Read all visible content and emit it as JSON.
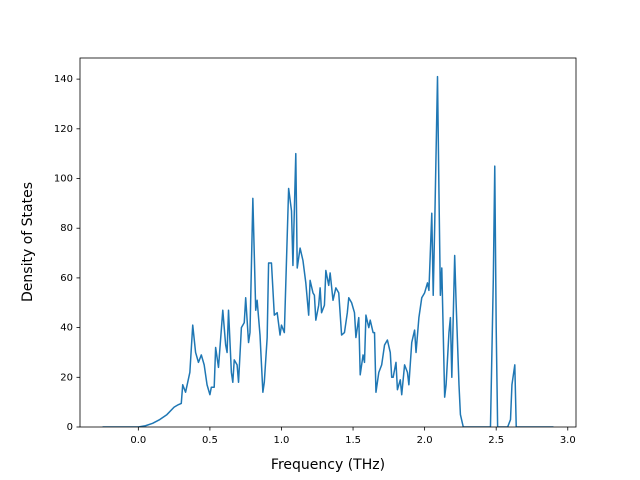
{
  "chart_data": {
    "type": "line",
    "xlabel": "Frequency (THz)",
    "ylabel": "Density of States",
    "xlim": [
      -0.4075,
      3.0575
    ],
    "ylim": [
      0,
      148.5
    ],
    "xticks": [
      {
        "value": 0,
        "label": "0.0"
      },
      {
        "value": 0.5,
        "label": "0.5"
      },
      {
        "value": 1,
        "label": "1.0"
      },
      {
        "value": 1.5,
        "label": "1.5"
      },
      {
        "value": 2,
        "label": "2.0"
      },
      {
        "value": 2.5,
        "label": "2.5"
      },
      {
        "value": 3,
        "label": "3.0"
      }
    ],
    "yticks": [
      0,
      20,
      40,
      60,
      80,
      100,
      120,
      140
    ],
    "grid": false,
    "series": [
      {
        "color": "#1f77b4",
        "x": [
          -0.25,
          0,
          0.05,
          0.1,
          0.15,
          0.2,
          0.25,
          0.28,
          0.3,
          0.31,
          0.33,
          0.36,
          0.38,
          0.4,
          0.42,
          0.44,
          0.46,
          0.48,
          0.5,
          0.51,
          0.53,
          0.54,
          0.56,
          0.59,
          0.61,
          0.62,
          0.63,
          0.65,
          0.66,
          0.67,
          0.69,
          0.7,
          0.72,
          0.74,
          0.75,
          0.77,
          0.78,
          0.8,
          0.82,
          0.83,
          0.85,
          0.87,
          0.88,
          0.9,
          0.91,
          0.93,
          0.95,
          0.97,
          0.99,
          1,
          1.02,
          1.05,
          1.07,
          1.08,
          1.1,
          1.11,
          1.13,
          1.15,
          1.17,
          1.19,
          1.2,
          1.22,
          1.23,
          1.24,
          1.26,
          1.27,
          1.28,
          1.3,
          1.31,
          1.33,
          1.34,
          1.36,
          1.38,
          1.4,
          1.42,
          1.44,
          1.46,
          1.47,
          1.49,
          1.51,
          1.52,
          1.54,
          1.55,
          1.57,
          1.58,
          1.59,
          1.61,
          1.62,
          1.64,
          1.65,
          1.66,
          1.68,
          1.7,
          1.72,
          1.74,
          1.76,
          1.77,
          1.78,
          1.8,
          1.81,
          1.83,
          1.84,
          1.86,
          1.88,
          1.89,
          1.91,
          1.93,
          1.94,
          1.96,
          1.98,
          2,
          2.02,
          2.03,
          2.05,
          2.06,
          2.07,
          2.09,
          2.1,
          2.11,
          2.12,
          2.14,
          2.15,
          2.17,
          2.18,
          2.19,
          2.21,
          2.22,
          2.24,
          2.25,
          2.27,
          2.45,
          2.46,
          2.48,
          2.49,
          2.5,
          2.51,
          2.58,
          2.6,
          2.61,
          2.63,
          2.64,
          2.9
        ],
        "values": [
          0,
          0,
          0.5,
          1.5,
          3,
          5,
          8,
          9,
          9.5,
          17,
          14,
          22,
          41,
          30,
          26,
          29,
          25,
          17,
          13,
          16,
          16,
          32,
          24,
          47,
          33,
          30,
          47,
          22,
          18,
          27,
          25,
          18,
          40,
          42,
          52,
          34,
          38,
          92,
          47,
          51,
          37,
          14,
          18,
          36,
          66,
          66,
          45,
          46,
          37,
          41,
          38,
          96,
          87,
          65,
          110,
          64,
          72,
          67,
          58,
          45,
          59,
          54,
          53,
          43,
          49,
          56,
          46,
          49,
          63,
          57,
          62,
          51,
          56,
          54,
          37,
          38,
          46,
          52,
          50,
          46,
          36,
          44,
          21,
          29,
          26,
          45,
          40,
          43,
          38,
          38,
          14,
          22,
          25,
          33,
          35,
          30,
          20,
          20,
          26,
          15,
          19,
          13,
          25,
          22,
          17,
          34,
          39,
          30,
          44,
          52,
          54,
          58,
          55,
          86,
          53,
          80,
          141,
          95,
          53,
          64,
          12,
          17,
          38,
          44,
          20,
          69,
          50,
          17,
          5,
          0,
          0,
          0,
          60,
          105,
          40,
          0,
          0,
          3,
          17,
          25,
          0,
          0
        ]
      }
    ]
  }
}
